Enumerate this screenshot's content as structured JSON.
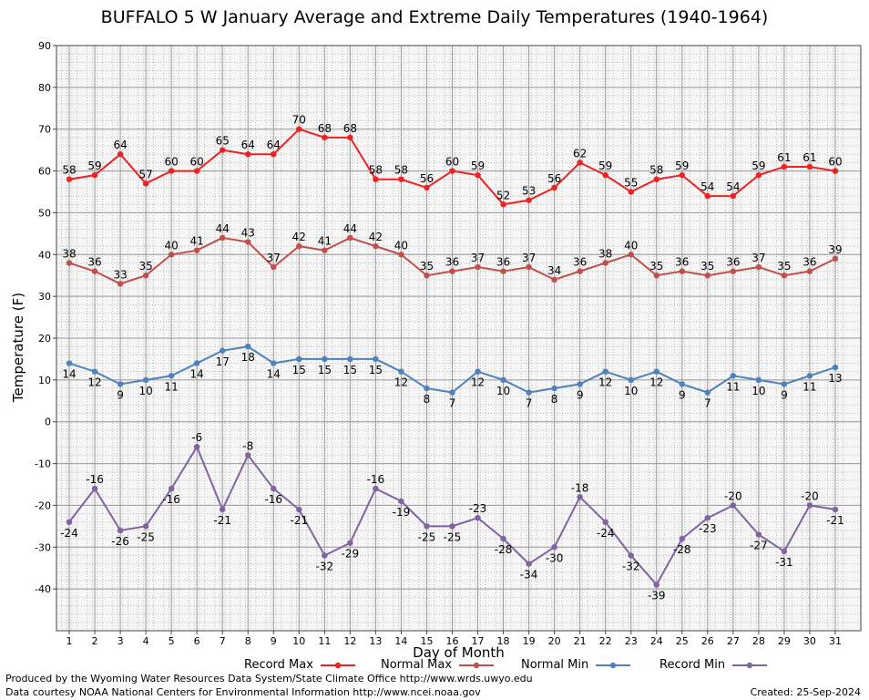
{
  "chart_data": {
    "type": "line",
    "title": "BUFFALO 5 W January Average and Extreme Daily Temperatures (1940-1964)",
    "xlabel": "Day of Month",
    "ylabel": "Temperature (F)",
    "ylim": [
      -50,
      90
    ],
    "yticks": [
      -40,
      -30,
      -20,
      -10,
      0,
      10,
      20,
      30,
      40,
      50,
      60,
      70,
      80,
      90
    ],
    "x": [
      1,
      2,
      3,
      4,
      5,
      6,
      7,
      8,
      9,
      10,
      11,
      12,
      13,
      14,
      15,
      16,
      17,
      18,
      19,
      20,
      21,
      22,
      23,
      24,
      25,
      26,
      27,
      28,
      29,
      30,
      31
    ],
    "grid": true,
    "legend_placement": "bottom",
    "series": [
      {
        "name": "Record Max",
        "color": "#ee2222",
        "values": [
          58,
          59,
          64,
          57,
          60,
          60,
          65,
          64,
          64,
          70,
          68,
          68,
          58,
          58,
          56,
          60,
          59,
          52,
          53,
          56,
          62,
          59,
          55,
          58,
          59,
          54,
          54,
          59,
          61,
          61,
          60
        ]
      },
      {
        "name": "Normal Max",
        "color": "#c0504d",
        "values": [
          38,
          36,
          33,
          35,
          40,
          41,
          44,
          43,
          37,
          42,
          41,
          44,
          42,
          40,
          35,
          36,
          37,
          36,
          37,
          34,
          36,
          38,
          40,
          35,
          36,
          35,
          36,
          37,
          35,
          36,
          39
        ]
      },
      {
        "name": "Normal Min",
        "color": "#4f81bd",
        "values": [
          14,
          12,
          9,
          10,
          11,
          14,
          17,
          18,
          14,
          15,
          15,
          15,
          15,
          12,
          8,
          7,
          12,
          10,
          7,
          8,
          9,
          12,
          10,
          12,
          9,
          7,
          11,
          10,
          9,
          11,
          13
        ]
      },
      {
        "name": "Record Min",
        "color": "#8064a2",
        "values": [
          -24,
          -16,
          -26,
          -25,
          -16,
          -6,
          -21,
          -8,
          -16,
          -21,
          -32,
          -29,
          -16,
          -19,
          -25,
          -25,
          -23,
          -28,
          -34,
          -30,
          -18,
          -24,
          -32,
          -39,
          -28,
          -23,
          -20,
          -27,
          -31,
          -20,
          -21
        ]
      }
    ]
  },
  "footer": {
    "line1": "Produced by the Wyoming Water Resources Data System/State Climate Office http://www.wrds.uwyo.edu",
    "line2": "Data courtesy NOAA National Centers for Environmental Information http://www.ncei.noaa.gov",
    "created": "Created: 25-Sep-2024"
  }
}
